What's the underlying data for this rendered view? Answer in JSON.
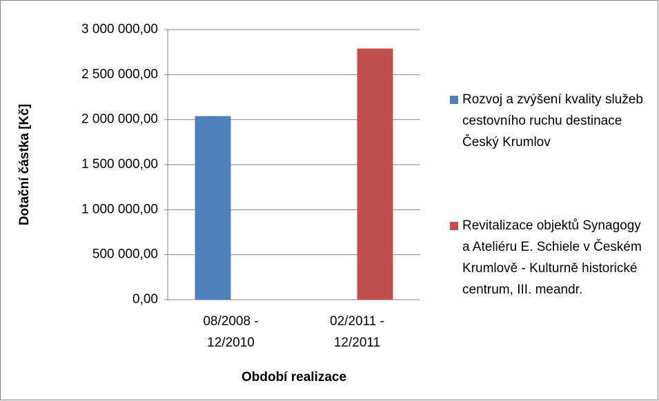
{
  "chart_data": {
    "type": "bar",
    "categories": [
      "08/2008 - 12/2010",
      "02/2011 - 12/2011"
    ],
    "series": [
      {
        "name": "Rozvoj a zvýšení kvality služeb cestovního ruchu destinace Český Krumlov",
        "color": "#4f81bd",
        "values": [
          2040000,
          null
        ]
      },
      {
        "name": "Revitalizace objektů Synagogy a Ateliéru E. Schiele v Českém Krumlově - Kulturně historické centrum, III. meandr.",
        "color": "#c0504d",
        "values": [
          null,
          2790000
        ]
      }
    ],
    "y_label": "Dotační částka [Kč]",
    "x_label": "Období realizace",
    "ylim": [
      0,
      3000000
    ],
    "yticks": [
      {
        "value": 0,
        "label": "0,00"
      },
      {
        "value": 500000,
        "label": "500 000,00"
      },
      {
        "value": 1000000,
        "label": "1 000 000,00"
      },
      {
        "value": 1500000,
        "label": "1 500 000,00"
      },
      {
        "value": 2000000,
        "label": "2 000 000,00"
      },
      {
        "value": 2500000,
        "label": "2 500 000,00"
      },
      {
        "value": 3000000,
        "label": "3 000 000,00"
      }
    ],
    "grid": true,
    "legend": "right"
  }
}
